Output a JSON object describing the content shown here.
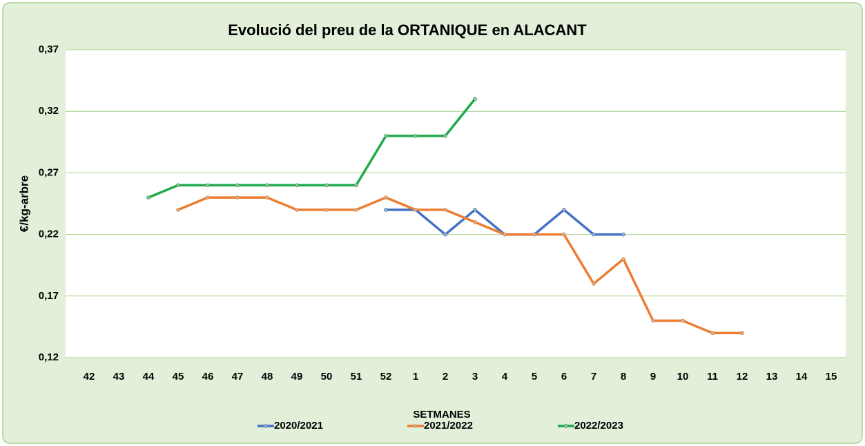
{
  "chart_data": {
    "type": "line",
    "title": "Evolució del preu de la ORTANIQUE en ALACANT",
    "x_label": "SETMANES",
    "y_label": "€/kg-arbre",
    "categories": [
      "42",
      "43",
      "44",
      "45",
      "46",
      "47",
      "48",
      "49",
      "50",
      "51",
      "52",
      "1",
      "2",
      "3",
      "4",
      "5",
      "6",
      "7",
      "8",
      "9",
      "10",
      "11",
      "12",
      "13",
      "14",
      "15"
    ],
    "series": [
      {
        "name": "2020/2021",
        "color": "#4472c4",
        "values": [
          null,
          null,
          null,
          null,
          null,
          null,
          null,
          null,
          null,
          null,
          0.24,
          0.24,
          0.22,
          0.24,
          0.22,
          0.22,
          0.24,
          0.22,
          0.22,
          null,
          null,
          null,
          null,
          null,
          null,
          null
        ]
      },
      {
        "name": "2021/2022",
        "color": "#ed7d31",
        "values": [
          null,
          null,
          null,
          0.24,
          0.25,
          0.25,
          0.25,
          0.24,
          0.24,
          0.24,
          0.25,
          0.24,
          0.24,
          0.23,
          0.22,
          0.22,
          0.22,
          0.18,
          0.2,
          0.15,
          0.15,
          0.14,
          0.14,
          null,
          null,
          null
        ]
      },
      {
        "name": "2022/2023",
        "color": "#1faa4a",
        "values": [
          null,
          null,
          0.25,
          0.26,
          0.26,
          0.26,
          0.26,
          0.26,
          0.26,
          0.26,
          0.3,
          0.3,
          0.3,
          0.33,
          null,
          null,
          null,
          null,
          null,
          null,
          null,
          null,
          null,
          null,
          null,
          null
        ]
      }
    ],
    "ylim": [
      0.12,
      0.37
    ],
    "yticks": [
      {
        "value": 0.12,
        "label": "0,12"
      },
      {
        "value": 0.17,
        "label": "0,17"
      },
      {
        "value": 0.22,
        "label": "0,22"
      },
      {
        "value": 0.27,
        "label": "0,27"
      },
      {
        "value": 0.32,
        "label": "0,32"
      },
      {
        "value": 0.37,
        "label": "0,37"
      }
    ],
    "grid": true,
    "legend": "bottom"
  }
}
